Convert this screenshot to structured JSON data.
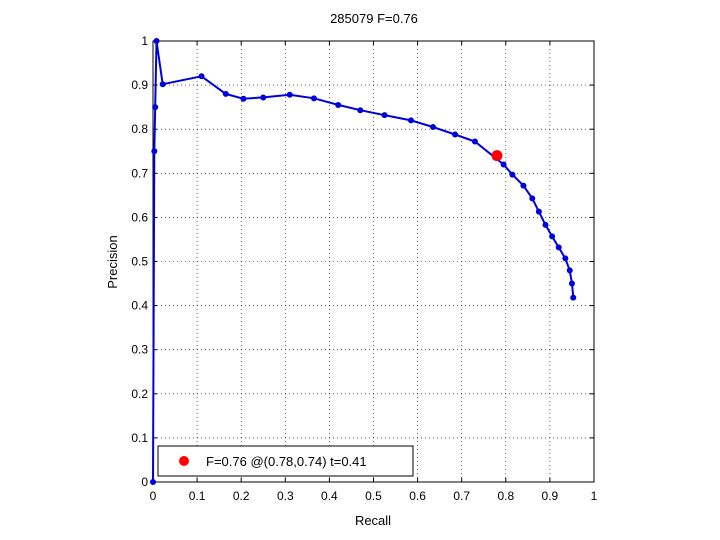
{
  "chart_data": {
    "type": "line",
    "title": "285079 F=0.76",
    "xlabel": "Recall",
    "ylabel": "Precision",
    "xlim": [
      0,
      1
    ],
    "ylim": [
      0,
      1
    ],
    "xticks": [
      "0",
      "0.1",
      "0.2",
      "0.3",
      "0.4",
      "0.5",
      "0.6",
      "0.7",
      "0.8",
      "0.9",
      "1"
    ],
    "yticks": [
      "0",
      "0.1",
      "0.2",
      "0.3",
      "0.4",
      "0.5",
      "0.6",
      "0.7",
      "0.8",
      "0.9",
      "1"
    ],
    "grid": true,
    "series": [
      {
        "color": "#0000dd",
        "points": [
          [
            0.0,
            0.0
          ],
          [
            0.003,
            0.75
          ],
          [
            0.005,
            0.85
          ],
          [
            0.008,
            1.0
          ],
          [
            0.022,
            0.902
          ],
          [
            0.11,
            0.92
          ],
          [
            0.165,
            0.88
          ],
          [
            0.205,
            0.869
          ],
          [
            0.25,
            0.872
          ],
          [
            0.31,
            0.878
          ],
          [
            0.365,
            0.87
          ],
          [
            0.42,
            0.855
          ],
          [
            0.47,
            0.843
          ],
          [
            0.525,
            0.832
          ],
          [
            0.585,
            0.82
          ],
          [
            0.635,
            0.805
          ],
          [
            0.685,
            0.788
          ],
          [
            0.73,
            0.772
          ],
          [
            0.795,
            0.72
          ],
          [
            0.815,
            0.697
          ],
          [
            0.84,
            0.672
          ],
          [
            0.86,
            0.643
          ],
          [
            0.875,
            0.613
          ],
          [
            0.89,
            0.583
          ],
          [
            0.905,
            0.557
          ],
          [
            0.92,
            0.532
          ],
          [
            0.935,
            0.507
          ],
          [
            0.945,
            0.48
          ],
          [
            0.95,
            0.45
          ],
          [
            0.953,
            0.418
          ]
        ]
      }
    ],
    "highlight": {
      "x": 0.78,
      "y": 0.74,
      "color": "#ff0000"
    },
    "legend": {
      "position": "bottom-left",
      "label": "F=0.76 @(0.78,0.74) t=0.41"
    }
  }
}
